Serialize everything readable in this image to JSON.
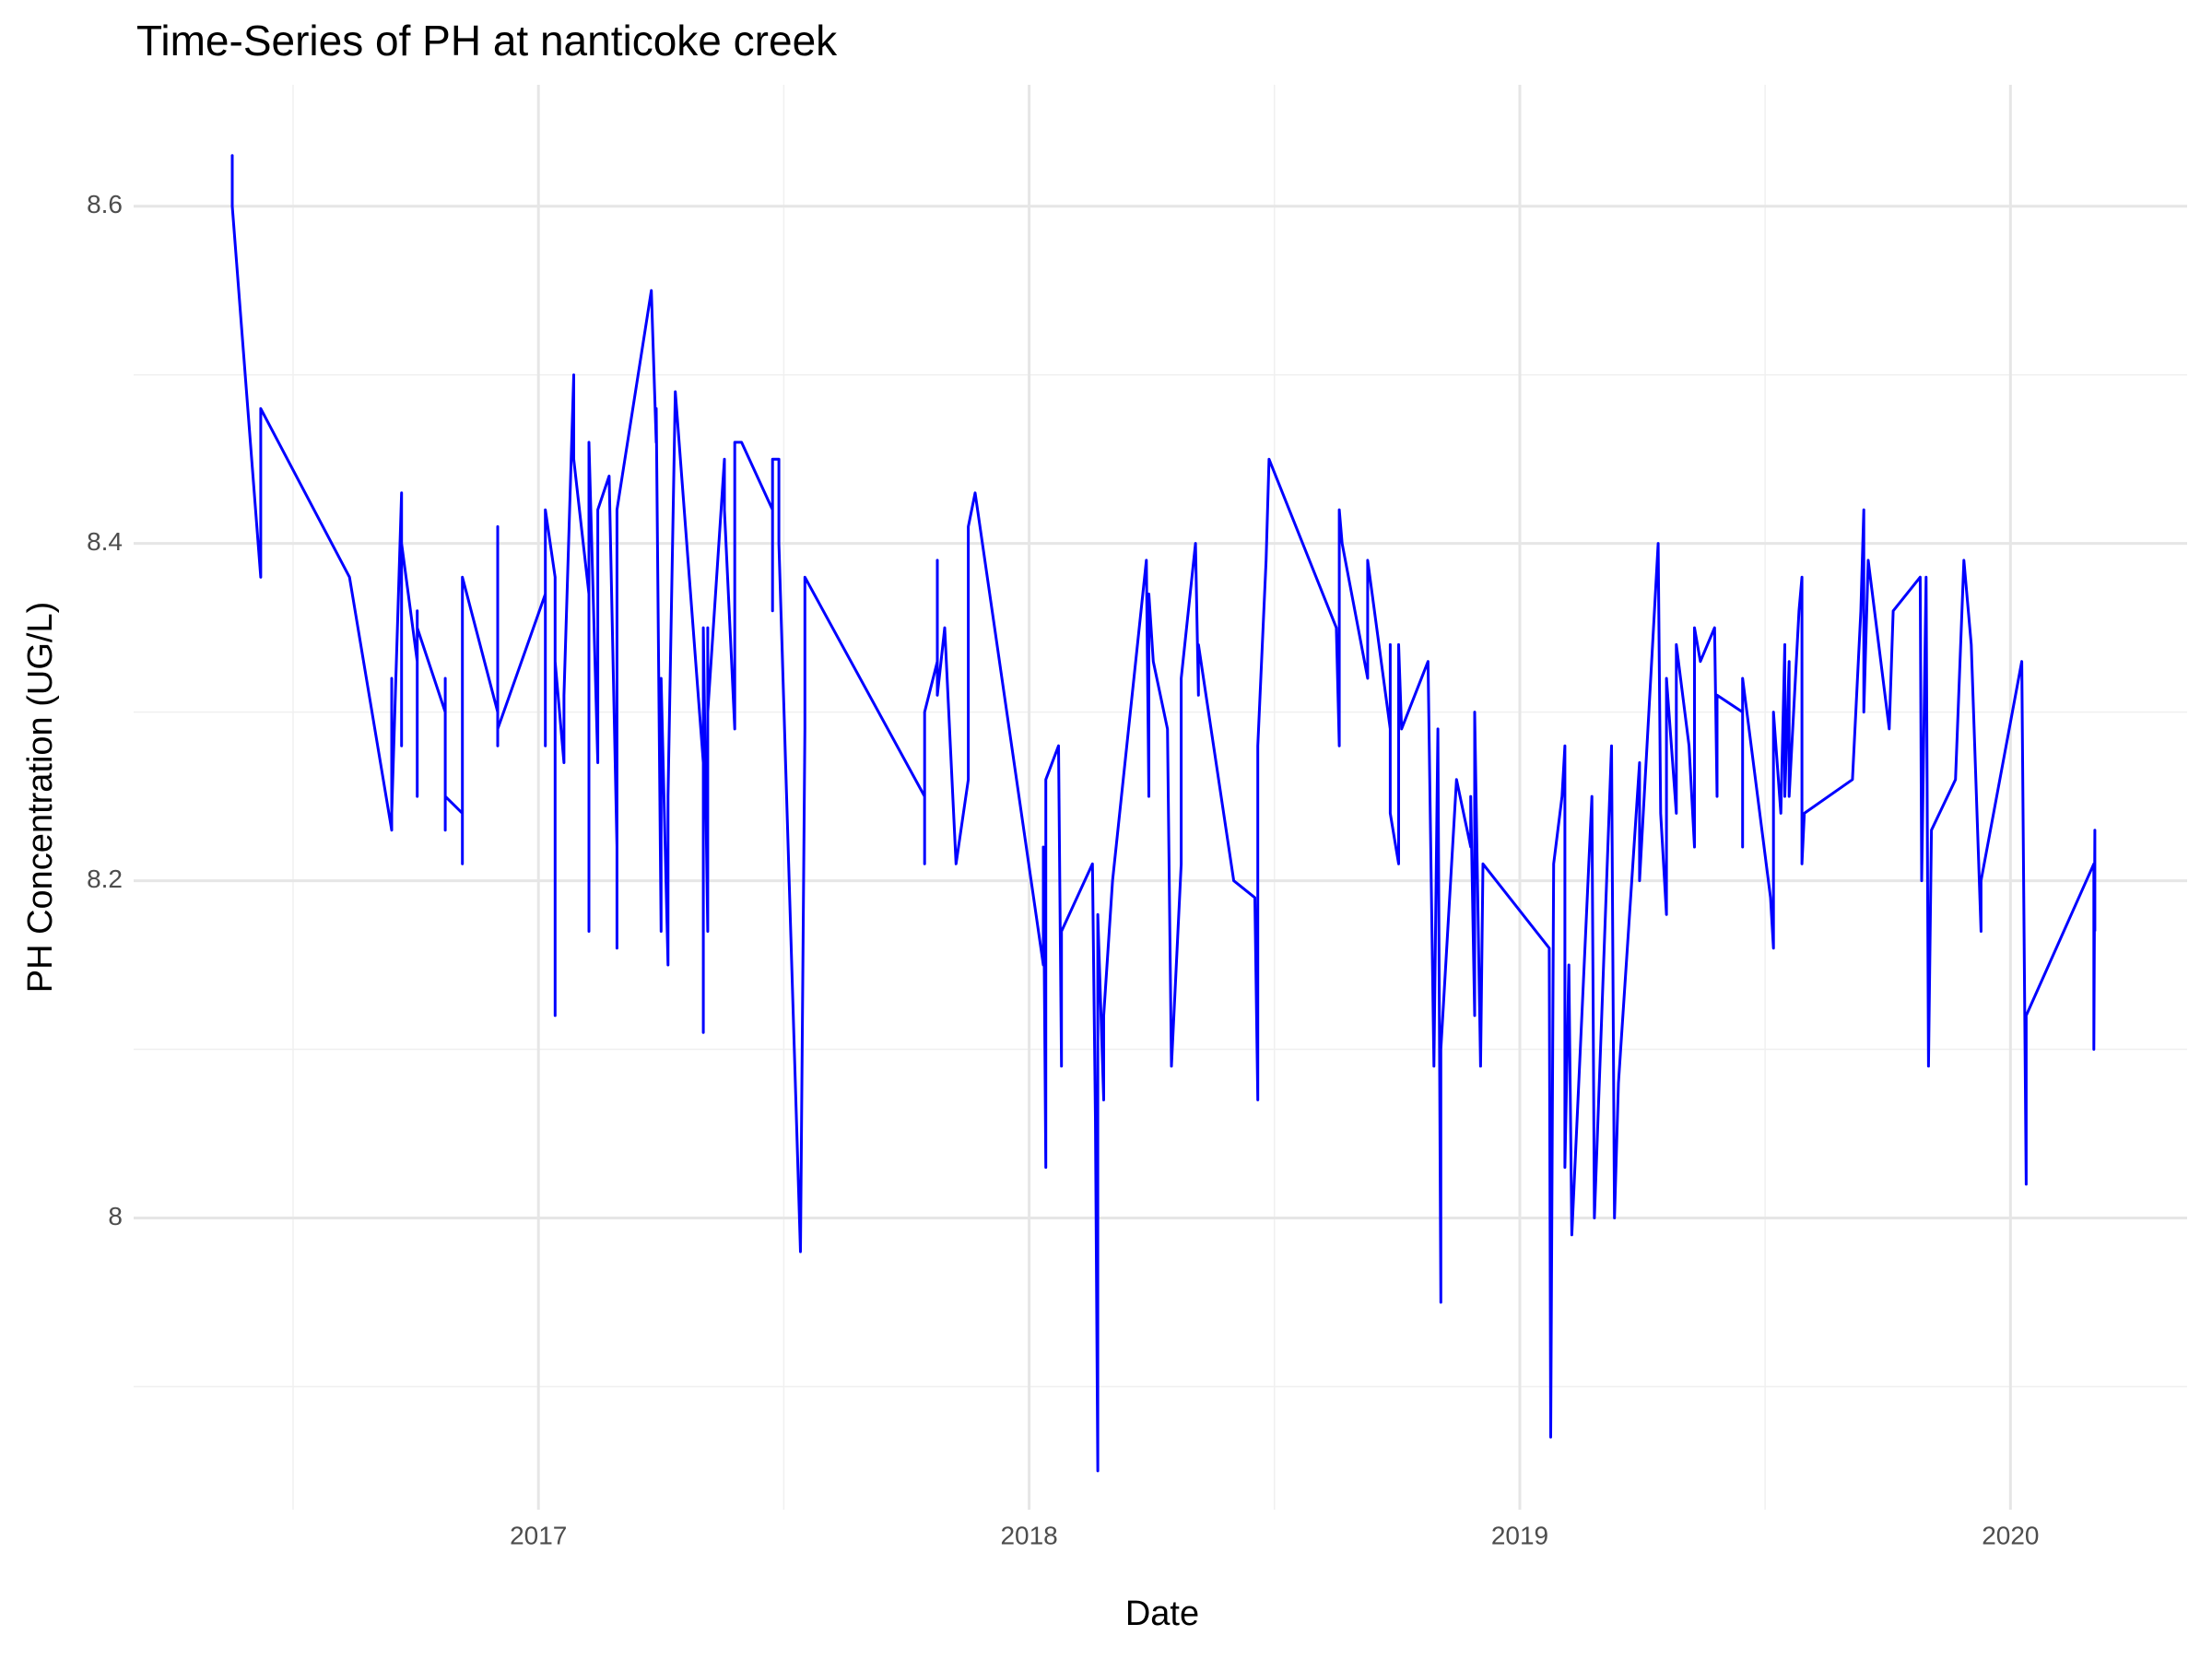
{
  "chart_data": {
    "type": "line",
    "title": "Time-Series of PH at nanticoke creek",
    "x_label": "Date",
    "y_label": "PH Concentration (UG/L)",
    "xlim": [
      2016.175,
      2020.36
    ],
    "ylim": [
      7.827,
      8.672
    ],
    "xticks": [
      2017,
      2018,
      2019,
      2020
    ],
    "yticks": [
      8.0,
      8.2,
      8.4,
      8.6
    ],
    "grid": true,
    "series": [
      {
        "color": "#0000ff",
        "x": [
          2016.376,
          2016.376,
          2016.376,
          2016.434,
          2016.434,
          2016.615,
          2016.701,
          2016.701,
          2016.701,
          2016.721,
          2016.721,
          2016.721,
          2016.753,
          2016.753,
          2016.753,
          2016.753,
          2016.81,
          2016.81,
          2016.81,
          2016.81,
          2016.845,
          2016.845,
          2016.845,
          2016.917,
          2016.917,
          2016.917,
          2016.917,
          2017.014,
          2017.014,
          2017.014,
          2017.034,
          2017.034,
          2017.034,
          2017.052,
          2017.052,
          2017.072,
          2017.072,
          2017.103,
          2017.103,
          2017.103,
          2017.121,
          2017.121,
          2017.144,
          2017.16,
          2017.16,
          2017.16,
          2017.16,
          2017.23,
          2017.24,
          2017.24,
          2017.25,
          2017.25,
          2017.264,
          2017.264,
          2017.279,
          2017.336,
          2017.336,
          2017.336,
          2017.345,
          2017.345,
          2017.345,
          2017.379,
          2017.379,
          2017.4,
          2017.4,
          2017.414,
          2017.477,
          2017.477,
          2017.477,
          2017.49,
          2017.49,
          2017.534,
          2017.543,
          2017.543,
          2017.787,
          2017.787,
          2017.787,
          2017.813,
          2017.813,
          2017.813,
          2017.828,
          2017.851,
          2017.876,
          2017.876,
          2017.876,
          2017.89,
          2018.029,
          2018.029,
          2018.034,
          2018.034,
          2018.06,
          2018.066,
          2018.066,
          2018.129,
          2018.135,
          2018.14,
          2018.14,
          2018.152,
          2018.152,
          2018.17,
          2018.239,
          2018.244,
          2018.244,
          2018.253,
          2018.282,
          2018.29,
          2018.31,
          2018.31,
          2018.339,
          2018.345,
          2018.345,
          2018.417,
          2018.46,
          2018.466,
          2018.466,
          2018.483,
          2018.489,
          2018.626,
          2018.632,
          2018.632,
          2018.638,
          2018.69,
          2018.69,
          2018.736,
          2018.736,
          2018.736,
          2018.753,
          2018.753,
          2018.759,
          2018.813,
          2018.825,
          2018.833,
          2018.839,
          2018.839,
          2018.871,
          2018.9,
          2018.9,
          2018.908,
          2018.908,
          2018.92,
          2018.925,
          2019.06,
          2019.063,
          2019.069,
          2019.086,
          2019.092,
          2019.092,
          2019.1,
          2019.106,
          2019.147,
          2019.152,
          2019.187,
          2019.193,
          2019.201,
          2019.244,
          2019.244,
          2019.282,
          2019.287,
          2019.299,
          2019.299,
          2019.319,
          2019.319,
          2019.345,
          2019.356,
          2019.356,
          2019.368,
          2019.397,
          2019.402,
          2019.402,
          2019.454,
          2019.454,
          2019.454,
          2019.511,
          2019.517,
          2019.517,
          2019.532,
          2019.54,
          2019.54,
          2019.549,
          2019.549,
          2019.569,
          2019.575,
          2019.575,
          2019.58,
          2019.678,
          2019.695,
          2019.701,
          2019.701,
          2019.71,
          2019.753,
          2019.761,
          2019.816,
          2019.819,
          2019.828,
          2019.833,
          2019.839,
          2019.888,
          2019.905,
          2019.92,
          2019.94,
          2019.94,
          2020.023,
          2020.032,
          2020.032,
          2020.17,
          2020.17,
          2020.172,
          2020.172
        ],
        "values": [
          8.6,
          8.63,
          8.6,
          8.38,
          8.48,
          8.38,
          8.23,
          8.32,
          8.24,
          8.43,
          8.28,
          8.4,
          8.33,
          8.36,
          8.25,
          8.35,
          8.3,
          8.23,
          8.32,
          8.25,
          8.24,
          8.21,
          8.38,
          8.3,
          8.28,
          8.41,
          8.29,
          8.37,
          8.28,
          8.42,
          8.38,
          8.12,
          8.33,
          8.27,
          8.31,
          8.5,
          8.45,
          8.37,
          8.17,
          8.46,
          8.27,
          8.42,
          8.44,
          8.22,
          8.36,
          8.16,
          8.42,
          8.55,
          8.46,
          8.48,
          8.17,
          8.32,
          8.15,
          8.25,
          8.49,
          8.27,
          8.11,
          8.35,
          8.17,
          8.35,
          8.3,
          8.45,
          8.42,
          8.29,
          8.46,
          8.46,
          8.42,
          8.36,
          8.45,
          8.45,
          8.4,
          7.98,
          8.29,
          8.38,
          8.25,
          8.21,
          8.3,
          8.33,
          8.39,
          8.31,
          8.35,
          8.21,
          8.26,
          8.3,
          8.41,
          8.43,
          8.15,
          8.22,
          8.03,
          8.26,
          8.28,
          8.09,
          8.17,
          8.21,
          8.06,
          7.85,
          8.18,
          8.07,
          8.12,
          8.2,
          8.39,
          8.25,
          8.37,
          8.33,
          8.29,
          8.09,
          8.21,
          8.32,
          8.4,
          8.31,
          8.34,
          8.2,
          8.19,
          8.07,
          8.28,
          8.39,
          8.45,
          8.35,
          8.28,
          8.42,
          8.4,
          8.32,
          8.39,
          8.29,
          8.34,
          8.24,
          8.21,
          8.34,
          8.29,
          8.33,
          8.09,
          8.29,
          7.95,
          8.1,
          8.26,
          8.22,
          8.25,
          8.12,
          8.3,
          8.09,
          8.21,
          8.16,
          7.87,
          8.21,
          8.25,
          8.28,
          8.03,
          8.15,
          7.99,
          8.25,
          8.0,
          8.28,
          8.0,
          8.08,
          8.27,
          8.2,
          8.4,
          8.24,
          8.18,
          8.32,
          8.24,
          8.34,
          8.28,
          8.22,
          8.35,
          8.33,
          8.35,
          8.25,
          8.31,
          8.3,
          8.22,
          8.32,
          8.19,
          8.16,
          8.3,
          8.24,
          8.34,
          8.25,
          8.33,
          8.25,
          8.36,
          8.38,
          8.21,
          8.24,
          8.26,
          8.36,
          8.42,
          8.3,
          8.39,
          8.29,
          8.36,
          8.38,
          8.2,
          8.38,
          8.09,
          8.23,
          8.26,
          8.39,
          8.34,
          8.17,
          8.2,
          8.33,
          8.02,
          8.12,
          8.21,
          8.1,
          8.23,
          8.17
        ]
      }
    ]
  }
}
